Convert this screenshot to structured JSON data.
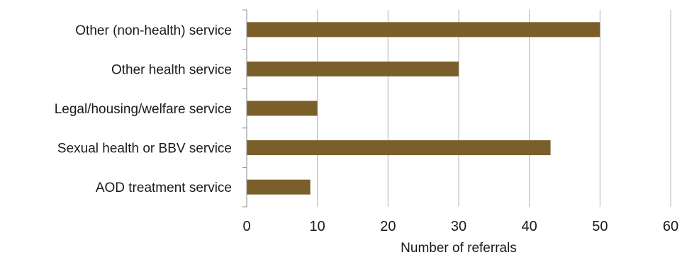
{
  "chart_data": {
    "type": "bar",
    "orientation": "horizontal",
    "categories": [
      "Other (non-health) service",
      "Other health service",
      "Legal/housing/welfare service",
      "Sexual health or BBV service",
      "AOD treatment service"
    ],
    "values": [
      50,
      30,
      10,
      43,
      9
    ],
    "xlabel": "Number of referrals",
    "ylabel": "",
    "xlim": [
      0,
      60
    ],
    "xticks": [
      "0",
      "10",
      "20",
      "30",
      "40",
      "50",
      "60"
    ],
    "grid": "vertical",
    "bar_color": "#7a5f2a"
  }
}
